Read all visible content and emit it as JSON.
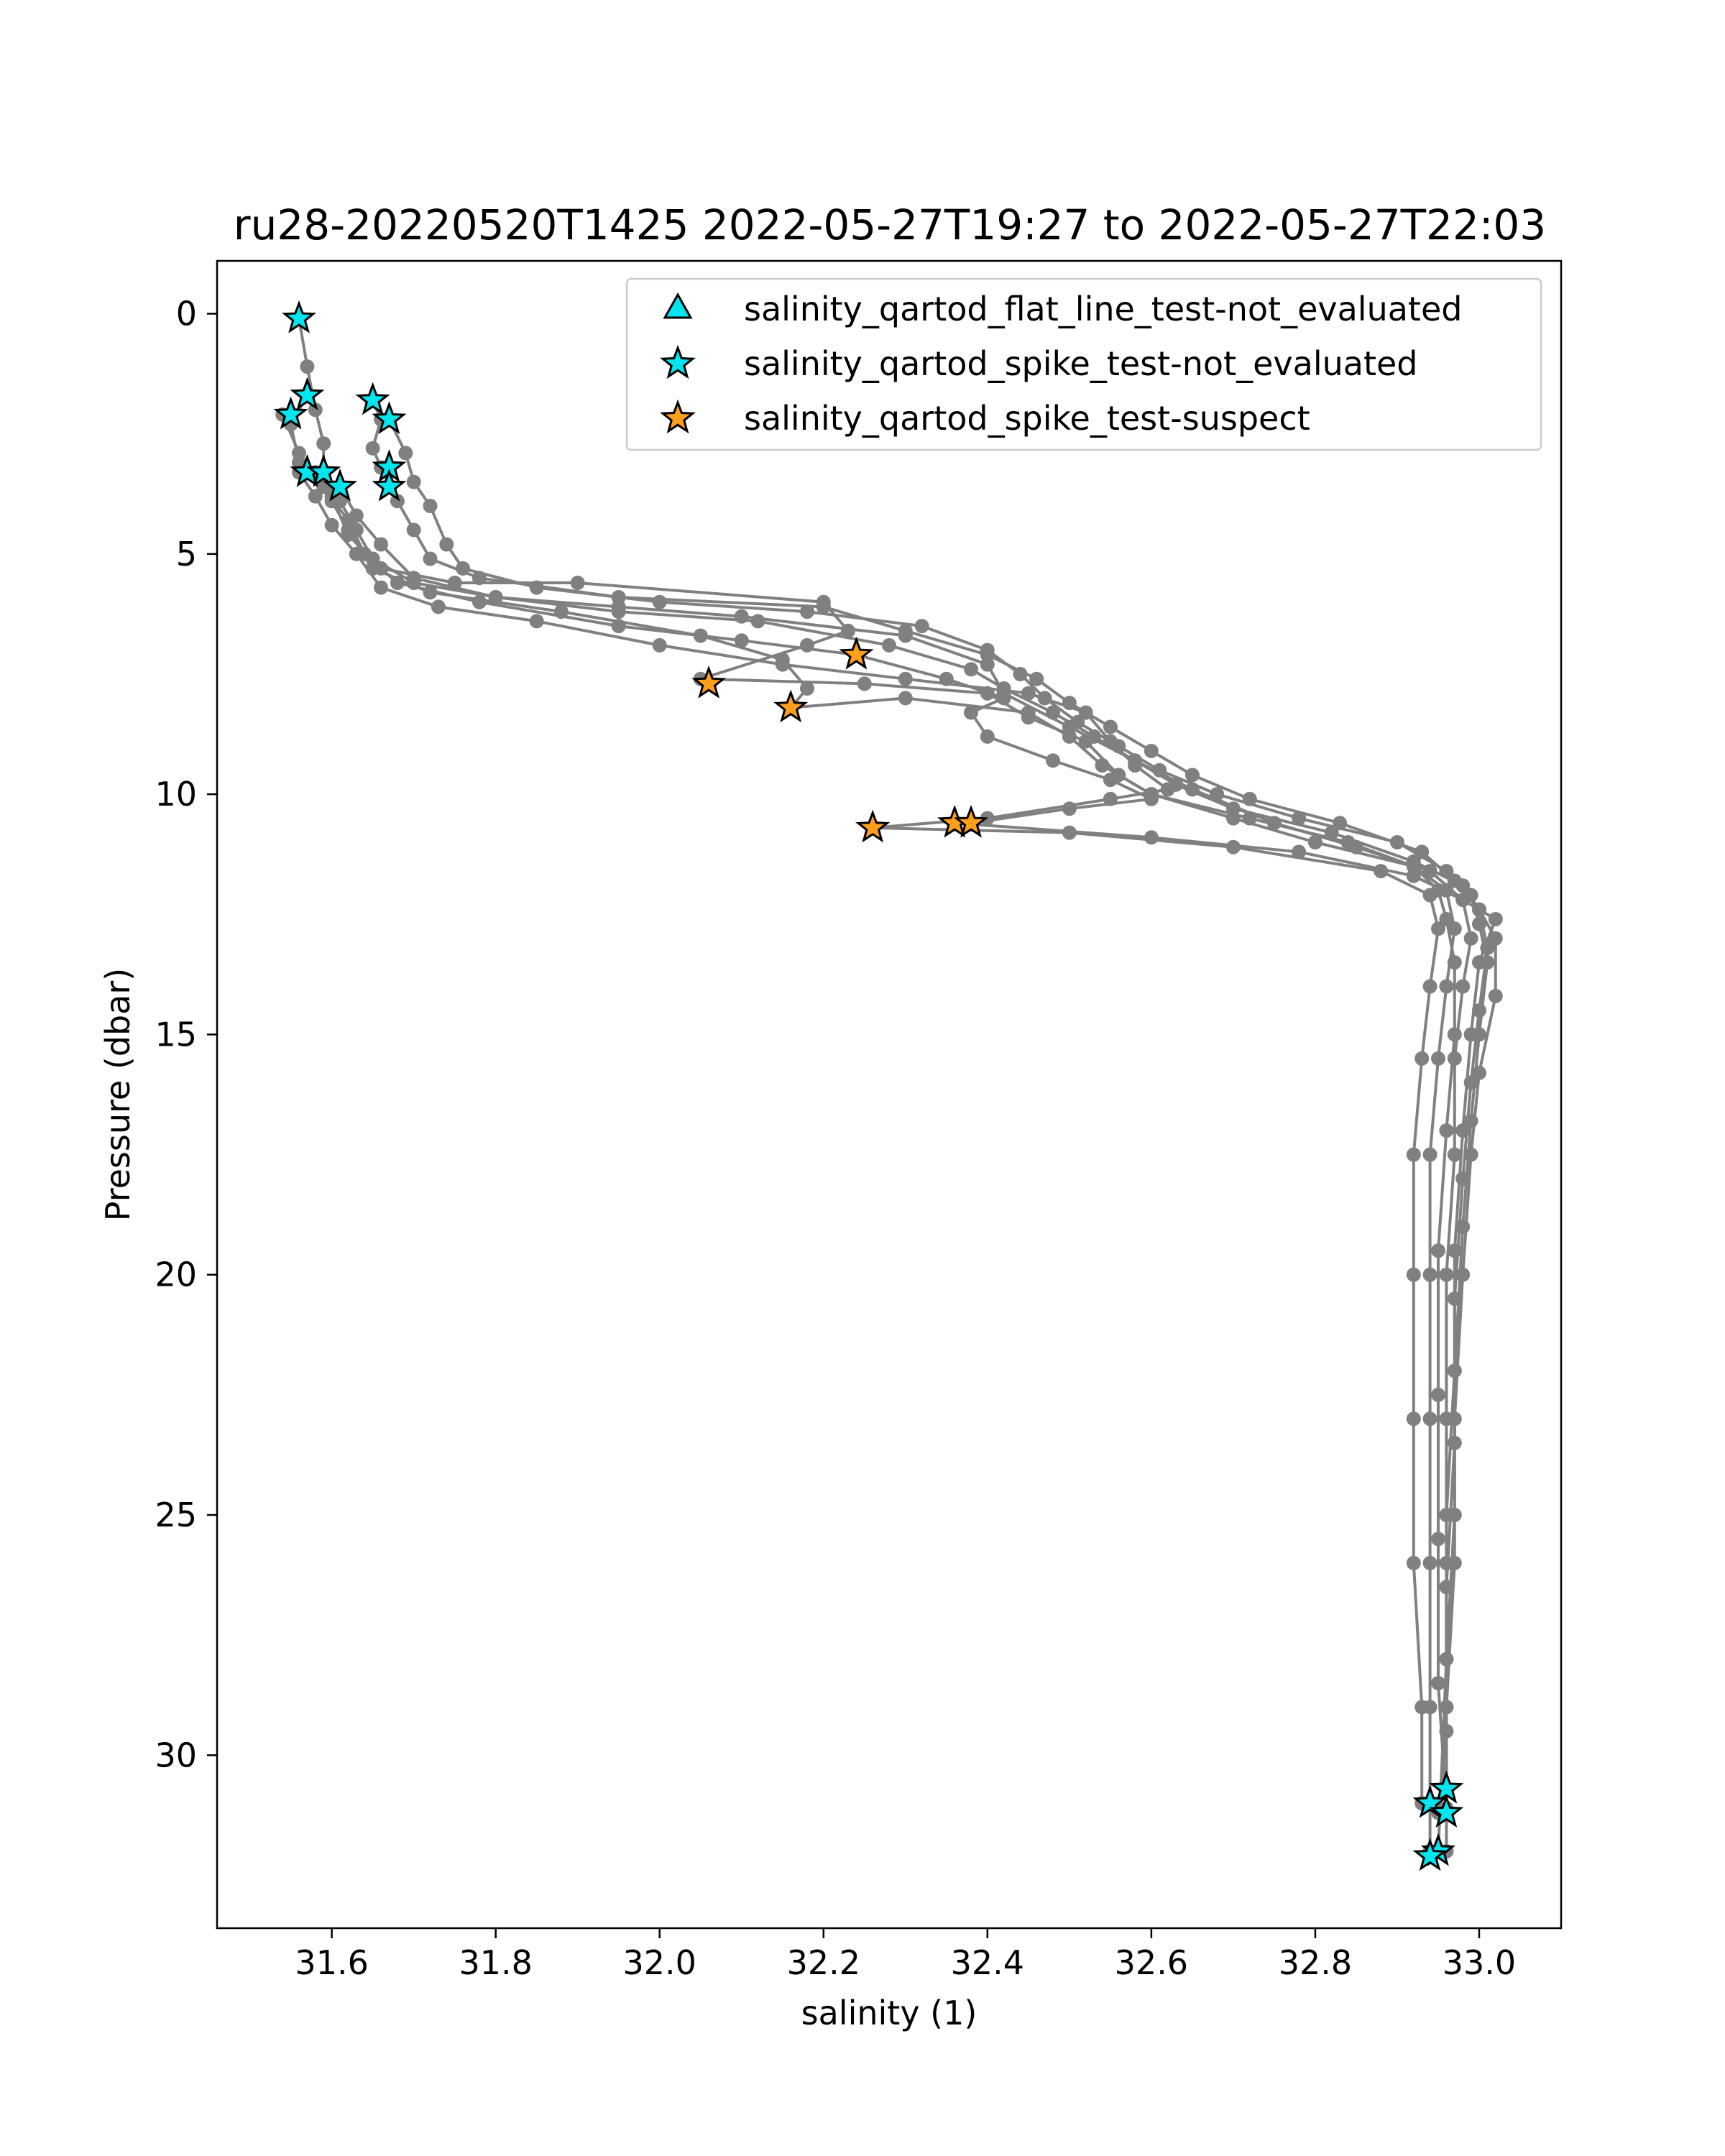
{
  "chart_data": {
    "type": "scatter",
    "title": "ru28-20220520T1425 2022-05-27T19:27 to 2022-05-27T22:03",
    "xlabel": "salinity (1)",
    "ylabel": "Pressure (dbar)",
    "xlim": [
      31.46,
      33.1
    ],
    "ylim": [
      33.6,
      -1.1
    ],
    "y_inverted": true,
    "xticks": [
      "31.6",
      "31.8",
      "32.0",
      "32.2",
      "32.4",
      "32.6",
      "32.8",
      "33.0"
    ],
    "yticks": [
      "0",
      "5",
      "10",
      "15",
      "20",
      "25",
      "30"
    ],
    "grid": false,
    "legend_position": "top-right",
    "legend": [
      {
        "label": "salinity_qartod_flat_line_test-not_evaluated",
        "marker": "triangle",
        "color": "#00e5ee"
      },
      {
        "label": "salinity_qartod_spike_test-not_evaluated",
        "marker": "star",
        "color": "#00e5ee"
      },
      {
        "label": "salinity_qartod_spike_test-suspect",
        "marker": "star",
        "color": "#ff9f1c"
      }
    ],
    "profile_color": "#808080",
    "profiles": [
      [
        [
          31.56,
          0.1
        ],
        [
          31.57,
          1.1
        ],
        [
          31.58,
          2.0
        ],
        [
          31.59,
          2.7
        ],
        [
          31.59,
          3.4
        ],
        [
          31.61,
          3.9
        ],
        [
          31.63,
          4.5
        ],
        [
          31.65,
          5.1
        ],
        [
          31.7,
          5.6
        ],
        [
          31.8,
          5.9
        ],
        [
          31.95,
          6.1
        ],
        [
          32.1,
          6.3
        ],
        [
          32.3,
          6.7
        ],
        [
          32.4,
          7.3
        ],
        [
          32.42,
          7.9
        ],
        [
          32.5,
          8.6
        ],
        [
          32.58,
          9.3
        ],
        [
          32.65,
          9.9
        ],
        [
          32.75,
          10.6
        ],
        [
          32.85,
          11.1
        ],
        [
          32.94,
          11.6
        ],
        [
          32.98,
          12.2
        ],
        [
          32.99,
          13.0
        ],
        [
          32.98,
          14.0
        ],
        [
          32.97,
          15.5
        ],
        [
          32.97,
          17.5
        ],
        [
          32.96,
          20.0
        ],
        [
          32.96,
          23.0
        ],
        [
          32.96,
          26.0
        ],
        [
          32.96,
          29.0
        ],
        [
          32.96,
          30.7
        ]
      ],
      [
        [
          31.57,
          1.7
        ],
        [
          31.55,
          2.3
        ],
        [
          31.56,
          3.1
        ],
        [
          31.6,
          3.8
        ],
        [
          31.62,
          4.6
        ],
        [
          31.66,
          5.3
        ],
        [
          31.75,
          5.6
        ],
        [
          31.9,
          5.6
        ],
        [
          32.2,
          6.0
        ],
        [
          32.23,
          6.6
        ],
        [
          32.18,
          6.9
        ],
        [
          32.05,
          7.6
        ],
        [
          32.25,
          7.7
        ],
        [
          32.4,
          7.9
        ],
        [
          32.45,
          8.4
        ],
        [
          32.52,
          8.9
        ],
        [
          32.56,
          9.6
        ],
        [
          32.6,
          10.0
        ],
        [
          32.7,
          10.5
        ],
        [
          32.8,
          11.0
        ],
        [
          32.92,
          11.5
        ],
        [
          32.95,
          12.0
        ],
        [
          32.96,
          12.6
        ],
        [
          32.97,
          13.5
        ],
        [
          32.97,
          15.0
        ],
        [
          32.96,
          17.0
        ],
        [
          32.95,
          19.5
        ],
        [
          32.95,
          22.5
        ],
        [
          32.95,
          25.5
        ],
        [
          32.95,
          28.5
        ],
        [
          32.96,
          31.1
        ]
      ],
      [
        [
          31.54,
          2.1
        ],
        [
          31.56,
          2.9
        ],
        [
          31.59,
          3.6
        ],
        [
          31.62,
          4.3
        ],
        [
          31.64,
          5.0
        ],
        [
          31.68,
          5.6
        ],
        [
          31.78,
          6.0
        ],
        [
          31.95,
          6.5
        ],
        [
          32.1,
          6.8
        ],
        [
          32.24,
          7.1
        ],
        [
          32.35,
          7.6
        ],
        [
          32.42,
          8.0
        ],
        [
          32.38,
          8.3
        ],
        [
          32.4,
          8.8
        ],
        [
          32.48,
          9.3
        ],
        [
          32.55,
          9.7
        ],
        [
          32.6,
          10.1
        ],
        [
          32.5,
          10.3
        ],
        [
          32.38,
          10.6
        ],
        [
          32.36,
          10.6
        ],
        [
          32.6,
          10.9
        ],
        [
          32.78,
          11.2
        ],
        [
          32.92,
          11.7
        ],
        [
          32.98,
          12.2
        ],
        [
          33.02,
          12.6
        ],
        [
          33.0,
          13.5
        ],
        [
          32.99,
          15.0
        ],
        [
          32.98,
          17.0
        ],
        [
          32.97,
          19.5
        ],
        [
          32.97,
          22.0
        ],
        [
          32.96,
          25.0
        ],
        [
          32.96,
          28.0
        ],
        [
          32.95,
          32.0
        ]
      ],
      [
        [
          31.56,
          3.3
        ],
        [
          31.58,
          3.8
        ],
        [
          31.6,
          4.4
        ],
        [
          31.63,
          5.0
        ],
        [
          31.66,
          5.7
        ],
        [
          31.73,
          6.1
        ],
        [
          31.85,
          6.4
        ],
        [
          32.0,
          6.9
        ],
        [
          32.15,
          7.3
        ],
        [
          32.3,
          7.6
        ],
        [
          32.45,
          7.9
        ],
        [
          32.52,
          8.3
        ],
        [
          32.55,
          8.9
        ],
        [
          32.58,
          9.4
        ],
        [
          32.62,
          9.9
        ],
        [
          32.55,
          10.1
        ],
        [
          32.4,
          10.5
        ],
        [
          32.26,
          10.7
        ],
        [
          32.5,
          10.8
        ],
        [
          32.7,
          11.1
        ],
        [
          32.88,
          11.6
        ],
        [
          32.94,
          12.1
        ],
        [
          32.95,
          12.8
        ],
        [
          32.94,
          14.0
        ],
        [
          32.93,
          15.5
        ],
        [
          32.92,
          17.5
        ],
        [
          32.92,
          20.0
        ],
        [
          32.92,
          23.0
        ],
        [
          32.92,
          26.0
        ],
        [
          32.93,
          29.0
        ],
        [
          32.93,
          31.0
        ]
      ],
      [
        [
          31.58,
          3.3
        ],
        [
          31.6,
          3.9
        ],
        [
          31.62,
          4.5
        ],
        [
          31.65,
          5.3
        ],
        [
          31.72,
          5.8
        ],
        [
          31.88,
          6.2
        ],
        [
          32.05,
          6.7
        ],
        [
          32.15,
          7.2
        ],
        [
          32.18,
          7.8
        ],
        [
          32.16,
          8.2
        ],
        [
          32.3,
          8.0
        ],
        [
          32.45,
          8.3
        ],
        [
          32.5,
          8.8
        ],
        [
          32.54,
          9.4
        ],
        [
          32.6,
          10.0
        ],
        [
          32.72,
          10.5
        ],
        [
          32.84,
          11.0
        ],
        [
          32.92,
          11.5
        ],
        [
          32.96,
          12.0
        ],
        [
          32.97,
          12.8
        ],
        [
          32.96,
          14.0
        ],
        [
          32.95,
          15.5
        ],
        [
          32.94,
          17.5
        ],
        [
          32.94,
          20.0
        ],
        [
          32.94,
          23.0
        ],
        [
          32.94,
          26.0
        ],
        [
          32.94,
          29.0
        ],
        [
          32.94,
          32.0
        ]
      ],
      [
        [
          31.61,
          3.6
        ],
        [
          31.63,
          4.2
        ],
        [
          31.66,
          4.8
        ],
        [
          31.7,
          5.5
        ],
        [
          31.8,
          5.9
        ],
        [
          31.95,
          6.2
        ],
        [
          32.12,
          6.4
        ],
        [
          32.28,
          6.9
        ],
        [
          32.38,
          7.4
        ],
        [
          32.42,
          7.8
        ],
        [
          32.48,
          8.3
        ],
        [
          32.53,
          8.8
        ],
        [
          32.58,
          9.3
        ],
        [
          32.63,
          9.8
        ],
        [
          32.7,
          10.3
        ],
        [
          32.82,
          10.8
        ],
        [
          32.92,
          11.4
        ],
        [
          32.98,
          11.9
        ],
        [
          33.0,
          12.4
        ],
        [
          33.01,
          13.2
        ],
        [
          33.0,
          14.5
        ],
        [
          32.99,
          16.0
        ],
        [
          32.98,
          18.0
        ],
        [
          32.97,
          20.5
        ],
        [
          32.97,
          23.5
        ],
        [
          32.96,
          26.5
        ],
        [
          32.96,
          29.5
        ],
        [
          32.95,
          31.2
        ]
      ],
      [
        [
          31.65,
          1.8
        ],
        [
          31.66,
          2.2
        ],
        [
          31.65,
          2.8
        ],
        [
          31.66,
          3.2
        ],
        [
          31.68,
          3.9
        ],
        [
          31.7,
          4.5
        ],
        [
          31.72,
          5.1
        ],
        [
          31.78,
          5.5
        ],
        [
          31.95,
          5.9
        ],
        [
          32.2,
          6.1
        ],
        [
          32.3,
          6.6
        ],
        [
          32.4,
          7.1
        ],
        [
          32.46,
          7.6
        ],
        [
          32.5,
          8.1
        ],
        [
          32.55,
          8.6
        ],
        [
          32.6,
          9.1
        ],
        [
          32.65,
          9.6
        ],
        [
          32.72,
          10.1
        ],
        [
          32.83,
          10.6
        ],
        [
          32.93,
          11.2
        ],
        [
          32.97,
          11.8
        ],
        [
          33.0,
          12.4
        ],
        [
          33.02,
          13.0
        ],
        [
          33.02,
          14.2
        ],
        [
          33.0,
          15.8
        ],
        [
          32.99,
          17.5
        ],
        [
          32.98,
          20.0
        ],
        [
          32.97,
          23.0
        ],
        [
          32.97,
          26.0
        ],
        [
          32.96,
          29.0
        ],
        [
          32.96,
          30.7
        ]
      ],
      [
        [
          31.67,
          2.2
        ],
        [
          31.69,
          2.9
        ],
        [
          31.7,
          3.5
        ],
        [
          31.72,
          4.0
        ],
        [
          31.74,
          4.8
        ],
        [
          31.76,
          5.3
        ],
        [
          31.85,
          5.7
        ],
        [
          32.0,
          6.0
        ],
        [
          32.18,
          6.2
        ],
        [
          32.32,
          6.5
        ],
        [
          32.4,
          7.0
        ],
        [
          32.44,
          7.5
        ],
        [
          32.47,
          8.0
        ],
        [
          32.51,
          8.5
        ],
        [
          32.56,
          9.0
        ],
        [
          32.61,
          9.5
        ],
        [
          32.68,
          10.0
        ],
        [
          32.78,
          10.5
        ],
        [
          32.9,
          11.0
        ],
        [
          32.96,
          11.6
        ],
        [
          32.99,
          12.1
        ],
        [
          33.0,
          12.7
        ],
        [
          33.01,
          13.5
        ],
        [
          33.0,
          15.0
        ],
        [
          32.99,
          16.8
        ],
        [
          32.98,
          19.0
        ],
        [
          32.97,
          22.0
        ],
        [
          32.97,
          25.0
        ],
        [
          32.96,
          28.0
        ],
        [
          32.96,
          32.0
        ]
      ]
    ],
    "series": [
      {
        "name": "salinity_qartod_spike_test-not_evaluated",
        "marker": "star",
        "color": "#00e5ee",
        "points": [
          [
            31.56,
            0.1
          ],
          [
            31.57,
            1.7
          ],
          [
            31.55,
            2.1
          ],
          [
            31.57,
            3.3
          ],
          [
            31.59,
            3.3
          ],
          [
            31.61,
            3.6
          ],
          [
            31.65,
            1.8
          ],
          [
            31.67,
            2.2
          ],
          [
            31.67,
            3.2
          ],
          [
            31.67,
            3.6
          ],
          [
            32.96,
            30.7
          ],
          [
            32.94,
            31.0
          ],
          [
            32.96,
            31.2
          ],
          [
            32.95,
            32.0
          ],
          [
            32.94,
            32.1
          ]
        ]
      },
      {
        "name": "salinity_qartod_spike_test-suspect",
        "marker": "star",
        "color": "#ff9f1c",
        "points": [
          [
            32.24,
            7.1
          ],
          [
            32.06,
            7.7
          ],
          [
            32.16,
            8.2
          ],
          [
            32.26,
            10.7
          ],
          [
            32.36,
            10.6
          ],
          [
            32.38,
            10.6
          ]
        ]
      }
    ]
  }
}
